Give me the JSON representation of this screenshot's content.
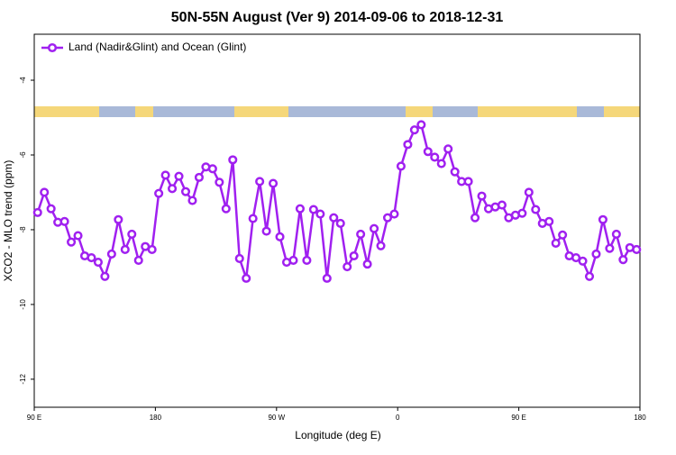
{
  "chart_data": {
    "type": "line",
    "title": "50N-55N August (Ver 9)   2014-09-06 to 2018-12-31",
    "xlabel": "Longitude (deg E)",
    "ylabel": "XCO2 - MLO trend (ppm)",
    "legend": "top-left",
    "xlim": [
      90,
      540
    ],
    "ylim": [
      -12.75,
      -2.77
    ],
    "xticks": [
      {
        "value": 90,
        "label": "90 E"
      },
      180,
      {
        "value": 270,
        "label": "90 W"
      },
      {
        "value": 360,
        "label": "0"
      },
      {
        "value": 450,
        "label": "90 E"
      },
      {
        "value": 540,
        "label": "180"
      }
    ],
    "yticks": [
      -12,
      -10,
      -8,
      -6,
      -4
    ],
    "x": [
      92.5,
      97.5,
      102.5,
      107.5,
      112.5,
      117.5,
      122.5,
      127.5,
      132.5,
      137.5,
      142.5,
      147.5,
      152.5,
      157.5,
      162.5,
      167.5,
      172.5,
      177.5,
      182.5,
      187.5,
      192.5,
      197.5,
      202.5,
      207.5,
      212.5,
      217.5,
      222.5,
      227.5,
      232.5,
      237.5,
      242.5,
      247.5,
      252.5,
      257.5,
      262.5,
      267.5,
      272.5,
      277.5,
      282.5,
      287.5,
      292.5,
      297.5,
      302.5,
      307.5,
      312.5,
      317.5,
      322.5,
      327.5,
      332.5,
      337.5,
      342.5,
      347.5,
      352.5,
      357.5,
      362.5,
      367.5,
      372.5,
      377.5,
      382.5,
      387.5,
      392.5,
      397.5,
      402.5,
      407.5,
      412.5,
      417.5,
      422.5,
      427.5,
      432.5,
      437.5,
      442.5,
      447.5,
      452.5,
      457.5,
      462.5,
      467.5,
      472.5,
      477.5,
      482.5,
      487.5,
      492.5,
      497.5,
      502.5,
      507.5,
      512.5,
      517.5,
      522.5,
      527.5,
      532.5,
      537.5
    ],
    "series": [
      {
        "name": "Land (Nadir&Glint) and Ocean (Glint)",
        "color": "#a020f0",
        "values": [
          -7.54,
          -7.0,
          -7.44,
          -7.8,
          -7.78,
          -8.33,
          -8.16,
          -8.7,
          -8.75,
          -8.87,
          -9.25,
          -8.65,
          -7.73,
          -8.53,
          -8.12,
          -8.82,
          -8.45,
          -8.53,
          -7.03,
          -6.54,
          -6.9,
          -6.57,
          -6.98,
          -7.22,
          -6.6,
          -6.32,
          -6.37,
          -6.73,
          -7.44,
          -6.13,
          -8.77,
          -9.3,
          -7.7,
          -6.71,
          -8.04,
          -6.76,
          -8.19,
          -8.87,
          -8.82,
          -7.44,
          -8.82,
          -7.46,
          -7.58,
          -9.3,
          -7.68,
          -7.83,
          -8.99,
          -8.7,
          -8.12,
          -8.92,
          -7.97,
          -8.43,
          -7.68,
          -7.58,
          -6.3,
          -5.72,
          -5.33,
          -5.19,
          -5.91,
          -6.06,
          -6.23,
          -5.84,
          -6.45,
          -6.71,
          -6.71,
          -7.68,
          -7.1,
          -7.44,
          -7.39,
          -7.34,
          -7.68,
          -7.61,
          -7.56,
          -7.0,
          -7.46,
          -7.83,
          -7.78,
          -8.36,
          -8.14,
          -8.7,
          -8.75,
          -8.84,
          -9.25,
          -8.65,
          -7.73,
          -8.5,
          -8.12,
          -8.8,
          -8.48,
          -8.53
        ]
      }
    ]
  }
}
